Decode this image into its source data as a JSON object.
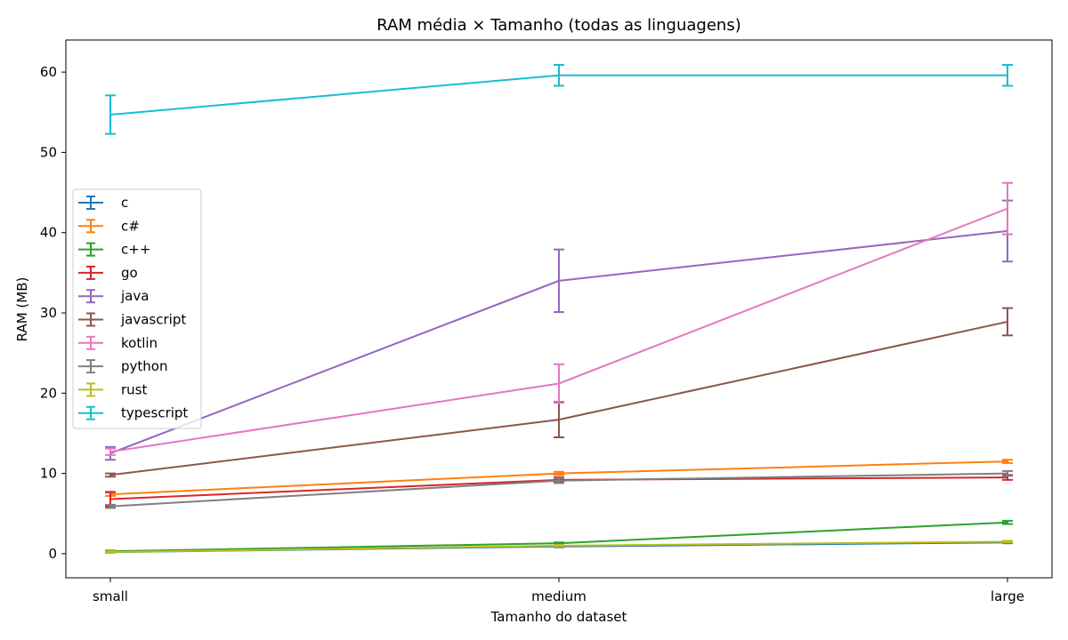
{
  "chart_data": {
    "type": "line",
    "title": "RAM média × Tamanho (todas as linguagens)",
    "xlabel": "Tamanho do dataset",
    "ylabel": "RAM (MB)",
    "categories": [
      "small",
      "medium",
      "large"
    ],
    "ylim": [
      -3,
      64
    ],
    "yticks": [
      0,
      10,
      20,
      30,
      40,
      50,
      60
    ],
    "grid": false,
    "legend_position": "center-left",
    "series": [
      {
        "name": "c",
        "color": "#1f77b4",
        "values": [
          0.2,
          0.9,
          1.4
        ],
        "errors": [
          0.1,
          0.1,
          0.1
        ]
      },
      {
        "name": "c#",
        "color": "#ff7f0e",
        "values": [
          7.4,
          10.0,
          11.5
        ],
        "errors": [
          0.2,
          0.2,
          0.2
        ]
      },
      {
        "name": "c++",
        "color": "#2ca02c",
        "values": [
          0.3,
          1.3,
          3.9
        ],
        "errors": [
          0.1,
          0.1,
          0.2
        ]
      },
      {
        "name": "go",
        "color": "#d62728",
        "values": [
          6.8,
          9.2,
          9.5
        ],
        "errors": [
          0.9,
          0.3,
          0.3
        ]
      },
      {
        "name": "java",
        "color": "#9467bd",
        "values": [
          12.5,
          34.0,
          40.2
        ],
        "errors": [
          0.8,
          3.9,
          3.8
        ]
      },
      {
        "name": "javascript",
        "color": "#8c564b",
        "values": [
          9.8,
          16.7,
          28.9
        ],
        "errors": [
          0.2,
          2.2,
          1.7
        ]
      },
      {
        "name": "kotlin",
        "color": "#e377c2",
        "values": [
          12.7,
          21.2,
          43.0
        ],
        "errors": [
          0.4,
          2.4,
          3.2
        ]
      },
      {
        "name": "python",
        "color": "#7f7f7f",
        "values": [
          5.9,
          9.1,
          10.0
        ],
        "errors": [
          0.2,
          0.3,
          0.3
        ]
      },
      {
        "name": "rust",
        "color": "#bcbd22",
        "values": [
          0.2,
          1.0,
          1.5
        ],
        "errors": [
          0.1,
          0.1,
          0.1
        ]
      },
      {
        "name": "typescript",
        "color": "#17becf",
        "values": [
          54.7,
          59.6,
          59.6
        ],
        "errors": [
          2.4,
          1.3,
          1.3
        ]
      }
    ]
  }
}
